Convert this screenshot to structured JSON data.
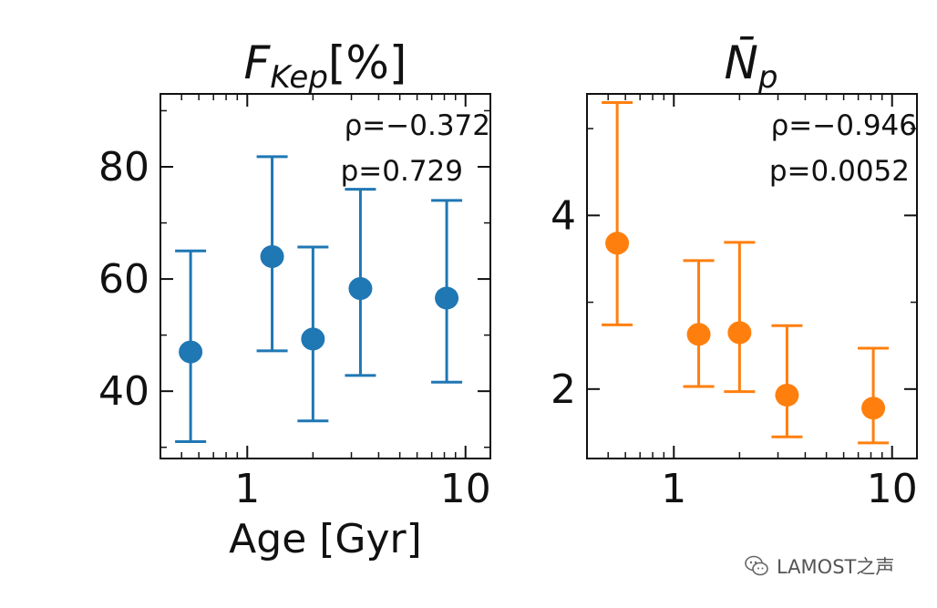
{
  "chart_data": [
    {
      "type": "scatter",
      "title": "F_Kep[%]",
      "title_parts": {
        "main": "F",
        "sub": "Kep",
        "suffix": "[%]"
      },
      "xlabel": "Age [Gyr]",
      "ylabel": "",
      "x_scale": "log",
      "xlim": [
        0.4,
        13
      ],
      "ylim": [
        28,
        93
      ],
      "xticks": [
        1,
        10
      ],
      "xtick_labels": [
        "1",
        "10"
      ],
      "yticks": [
        40,
        60,
        80
      ],
      "ytick_labels": [
        "40",
        "60",
        "80"
      ],
      "grid": false,
      "color": "#1f77b4",
      "annotations": [
        "ρ=−0.372",
        "p=0.729"
      ],
      "series": [
        {
          "x": [
            0.55,
            1.3,
            2.0,
            3.3,
            8.2
          ],
          "y": [
            47,
            64,
            49.3,
            58.3,
            56.6
          ],
          "y_err_low": [
            31,
            47.2,
            34.7,
            42.8,
            41.6
          ],
          "y_err_high": [
            65,
            81.8,
            65.7,
            76,
            74
          ]
        }
      ]
    },
    {
      "type": "scatter",
      "title": "N̄_p",
      "title_parts": {
        "main": "N̄",
        "sub": "p",
        "suffix": ""
      },
      "xlabel": "",
      "ylabel": "",
      "x_scale": "log",
      "xlim": [
        0.4,
        13
      ],
      "ylim": [
        1.2,
        5.4
      ],
      "xticks": [
        1,
        10
      ],
      "xtick_labels": [
        "1",
        "10"
      ],
      "yticks": [
        2,
        4
      ],
      "ytick_labels": [
        "2",
        "4"
      ],
      "grid": false,
      "color": "#ff7f0e",
      "annotations": [
        "ρ=−0.946",
        "p=0.0052"
      ],
      "series": [
        {
          "x": [
            0.55,
            1.3,
            2.0,
            3.3,
            8.2
          ],
          "y": [
            3.68,
            2.63,
            2.65,
            1.93,
            1.78
          ],
          "y_err_low": [
            2.74,
            2.03,
            1.97,
            1.45,
            1.38
          ],
          "y_err_high": [
            5.3,
            3.48,
            3.69,
            2.73,
            2.47
          ]
        }
      ]
    }
  ],
  "watermark": {
    "text": "LAMOST之声",
    "icon": "wechat-icon"
  }
}
